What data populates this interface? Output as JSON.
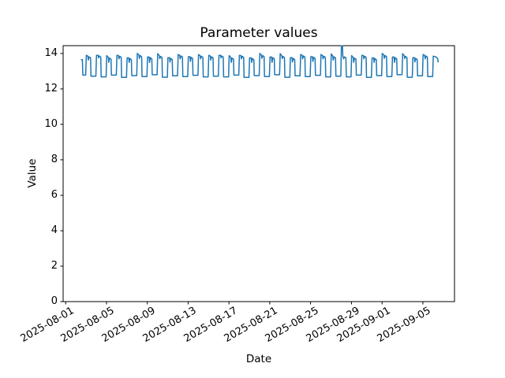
{
  "figure": {
    "background": "#ffffff"
  },
  "chart_data": {
    "type": "line",
    "title": "Parameter values",
    "xlabel": "Date",
    "ylabel": "Value",
    "grid": false,
    "legend": "none",
    "line_color": "#1f77b4",
    "axis_color": "#000000",
    "ylim": [
      0,
      14.44
    ],
    "y_ticks": [
      0,
      2,
      4,
      6,
      8,
      10,
      12,
      14
    ],
    "x_epoch": "2025-08-01",
    "xlim_days": [
      -0.25,
      38.1
    ],
    "x_tick_days": [
      0,
      4,
      8,
      12,
      16,
      20,
      24,
      28,
      31,
      35
    ],
    "x_tick_labels": [
      "2025-08-01",
      "2025-08-05",
      "2025-08-09",
      "2025-08-13",
      "2025-08-17",
      "2025-08-21",
      "2025-08-25",
      "2025-08-29",
      "2025-09-01",
      "2025-09-05"
    ],
    "series": [
      {
        "name": "Parameter values",
        "x_unit": "days since 2025-08-01",
        "points": [
          [
            1.5,
            13.65
          ],
          [
            1.64,
            13.65
          ],
          [
            1.68,
            12.78
          ],
          [
            1.96,
            12.78
          ],
          [
            2.02,
            13.9
          ],
          [
            2.18,
            13.85
          ],
          [
            2.22,
            13.63
          ],
          [
            2.3,
            13.81
          ],
          [
            2.44,
            13.75
          ],
          [
            2.48,
            12.72
          ],
          [
            2.96,
            12.72
          ],
          [
            3.02,
            13.9
          ],
          [
            3.18,
            13.9
          ],
          [
            3.22,
            13.75
          ],
          [
            3.3,
            13.86
          ],
          [
            3.44,
            13.8
          ],
          [
            3.48,
            12.68
          ],
          [
            3.96,
            12.68
          ],
          [
            4.02,
            13.88
          ],
          [
            4.18,
            13.78
          ],
          [
            4.22,
            13.5
          ],
          [
            4.3,
            13.74
          ],
          [
            4.44,
            13.68
          ],
          [
            4.48,
            12.78
          ],
          [
            4.96,
            12.78
          ],
          [
            5.02,
            13.9
          ],
          [
            5.18,
            13.88
          ],
          [
            5.22,
            13.7
          ],
          [
            5.3,
            13.84
          ],
          [
            5.44,
            13.78
          ],
          [
            5.48,
            12.65
          ],
          [
            5.96,
            12.65
          ],
          [
            6.02,
            13.75
          ],
          [
            6.18,
            13.75
          ],
          [
            6.22,
            13.5
          ],
          [
            6.3,
            13.71
          ],
          [
            6.44,
            13.65
          ],
          [
            6.48,
            12.75
          ],
          [
            6.96,
            12.75
          ],
          [
            7.02,
            14.0
          ],
          [
            7.18,
            13.92
          ],
          [
            7.22,
            13.72
          ],
          [
            7.3,
            13.88
          ],
          [
            7.44,
            13.82
          ],
          [
            7.48,
            12.7
          ],
          [
            7.96,
            12.7
          ],
          [
            8.02,
            13.8
          ],
          [
            8.18,
            13.8
          ],
          [
            8.22,
            13.5
          ],
          [
            8.3,
            13.76
          ],
          [
            8.44,
            13.7
          ],
          [
            8.48,
            12.8
          ],
          [
            8.96,
            12.8
          ],
          [
            9.02,
            13.99
          ],
          [
            9.18,
            13.87
          ],
          [
            9.22,
            13.71
          ],
          [
            9.3,
            13.83
          ],
          [
            9.44,
            13.77
          ],
          [
            9.48,
            12.66
          ],
          [
            9.96,
            12.66
          ],
          [
            10.02,
            13.76
          ],
          [
            10.18,
            13.76
          ],
          [
            10.22,
            13.52
          ],
          [
            10.3,
            13.72
          ],
          [
            10.44,
            13.66
          ],
          [
            10.48,
            12.74
          ],
          [
            10.96,
            12.74
          ],
          [
            11.02,
            13.94
          ],
          [
            11.18,
            13.9
          ],
          [
            11.22,
            13.7
          ],
          [
            11.3,
            13.86
          ],
          [
            11.44,
            13.8
          ],
          [
            11.48,
            12.7
          ],
          [
            11.96,
            12.7
          ],
          [
            12.02,
            13.82
          ],
          [
            12.18,
            13.82
          ],
          [
            12.22,
            13.55
          ],
          [
            12.3,
            13.78
          ],
          [
            12.44,
            13.72
          ],
          [
            12.48,
            12.77
          ],
          [
            12.96,
            12.77
          ],
          [
            13.02,
            13.94
          ],
          [
            13.18,
            13.88
          ],
          [
            13.22,
            13.7
          ],
          [
            13.3,
            13.84
          ],
          [
            13.44,
            13.78
          ],
          [
            13.48,
            12.68
          ],
          [
            13.96,
            12.68
          ],
          [
            14.02,
            13.9
          ],
          [
            14.18,
            13.85
          ],
          [
            14.22,
            13.63
          ],
          [
            14.3,
            13.81
          ],
          [
            14.44,
            13.75
          ],
          [
            14.48,
            12.72
          ],
          [
            14.96,
            12.72
          ],
          [
            15.02,
            13.9
          ],
          [
            15.18,
            13.9
          ],
          [
            15.22,
            13.75
          ],
          [
            15.3,
            13.86
          ],
          [
            15.44,
            13.8
          ],
          [
            15.48,
            12.68
          ],
          [
            15.96,
            12.68
          ],
          [
            16.02,
            13.88
          ],
          [
            16.18,
            13.78
          ],
          [
            16.22,
            13.5
          ],
          [
            16.3,
            13.74
          ],
          [
            16.44,
            13.68
          ],
          [
            16.48,
            12.78
          ],
          [
            16.96,
            12.78
          ],
          [
            17.02,
            13.9
          ],
          [
            17.18,
            13.88
          ],
          [
            17.22,
            13.7
          ],
          [
            17.3,
            13.84
          ],
          [
            17.44,
            13.78
          ],
          [
            17.48,
            12.65
          ],
          [
            17.96,
            12.65
          ],
          [
            18.02,
            13.75
          ],
          [
            18.18,
            13.75
          ],
          [
            18.22,
            13.5
          ],
          [
            18.3,
            13.71
          ],
          [
            18.44,
            13.65
          ],
          [
            18.48,
            12.75
          ],
          [
            18.96,
            12.75
          ],
          [
            19.02,
            14.0
          ],
          [
            19.18,
            13.92
          ],
          [
            19.22,
            13.72
          ],
          [
            19.3,
            13.88
          ],
          [
            19.44,
            13.82
          ],
          [
            19.48,
            12.7
          ],
          [
            19.96,
            12.7
          ],
          [
            20.02,
            13.8
          ],
          [
            20.18,
            13.8
          ],
          [
            20.22,
            13.5
          ],
          [
            20.3,
            13.76
          ],
          [
            20.44,
            13.7
          ],
          [
            20.48,
            12.8
          ],
          [
            20.96,
            12.8
          ],
          [
            21.02,
            13.99
          ],
          [
            21.18,
            13.87
          ],
          [
            21.22,
            13.71
          ],
          [
            21.3,
            13.83
          ],
          [
            21.44,
            13.77
          ],
          [
            21.48,
            12.66
          ],
          [
            21.96,
            12.66
          ],
          [
            22.02,
            13.76
          ],
          [
            22.18,
            13.76
          ],
          [
            22.22,
            13.52
          ],
          [
            22.3,
            13.72
          ],
          [
            22.44,
            13.66
          ],
          [
            22.48,
            12.74
          ],
          [
            22.96,
            12.74
          ],
          [
            23.02,
            13.94
          ],
          [
            23.18,
            13.9
          ],
          [
            23.22,
            13.7
          ],
          [
            23.3,
            13.86
          ],
          [
            23.44,
            13.8
          ],
          [
            23.48,
            12.7
          ],
          [
            23.96,
            12.7
          ],
          [
            24.02,
            13.82
          ],
          [
            24.18,
            13.82
          ],
          [
            24.22,
            13.55
          ],
          [
            24.3,
            13.78
          ],
          [
            24.44,
            13.72
          ],
          [
            24.48,
            12.77
          ],
          [
            24.96,
            12.77
          ],
          [
            25.02,
            13.94
          ],
          [
            25.18,
            13.88
          ],
          [
            25.22,
            13.7
          ],
          [
            25.3,
            13.84
          ],
          [
            25.44,
            13.78
          ],
          [
            25.48,
            12.68
          ],
          [
            25.96,
            12.68
          ],
          [
            26.02,
            13.98
          ],
          [
            26.18,
            13.85
          ],
          [
            26.22,
            13.63
          ],
          [
            26.3,
            13.81
          ],
          [
            26.44,
            13.75
          ],
          [
            26.48,
            12.72
          ],
          [
            26.96,
            12.72
          ],
          [
            27.02,
            14.43
          ],
          [
            27.12,
            14.43
          ],
          [
            27.16,
            13.85
          ],
          [
            27.24,
            13.7
          ],
          [
            27.32,
            13.81
          ],
          [
            27.46,
            13.75
          ],
          [
            27.5,
            12.68
          ],
          [
            27.96,
            12.68
          ],
          [
            28.02,
            13.88
          ],
          [
            28.18,
            13.78
          ],
          [
            28.22,
            13.5
          ],
          [
            28.3,
            13.74
          ],
          [
            28.44,
            13.68
          ],
          [
            28.48,
            12.78
          ],
          [
            28.96,
            12.78
          ],
          [
            29.02,
            13.9
          ],
          [
            29.18,
            13.88
          ],
          [
            29.22,
            13.7
          ],
          [
            29.3,
            13.84
          ],
          [
            29.44,
            13.78
          ],
          [
            29.48,
            12.65
          ],
          [
            29.96,
            12.65
          ],
          [
            30.02,
            13.75
          ],
          [
            30.18,
            13.75
          ],
          [
            30.22,
            13.5
          ],
          [
            30.3,
            13.71
          ],
          [
            30.44,
            13.65
          ],
          [
            30.48,
            12.75
          ],
          [
            30.96,
            12.75
          ],
          [
            31.02,
            14.0
          ],
          [
            31.18,
            13.92
          ],
          [
            31.22,
            13.72
          ],
          [
            31.3,
            13.88
          ],
          [
            31.44,
            13.82
          ],
          [
            31.48,
            12.7
          ],
          [
            31.96,
            12.7
          ],
          [
            32.02,
            13.8
          ],
          [
            32.18,
            13.8
          ],
          [
            32.22,
            13.5
          ],
          [
            32.3,
            13.76
          ],
          [
            32.44,
            13.7
          ],
          [
            32.48,
            12.8
          ],
          [
            32.96,
            12.8
          ],
          [
            33.02,
            13.99
          ],
          [
            33.18,
            13.87
          ],
          [
            33.22,
            13.71
          ],
          [
            33.3,
            13.83
          ],
          [
            33.44,
            13.77
          ],
          [
            33.48,
            12.66
          ],
          [
            33.96,
            12.66
          ],
          [
            34.02,
            13.76
          ],
          [
            34.18,
            13.76
          ],
          [
            34.22,
            13.52
          ],
          [
            34.3,
            13.72
          ],
          [
            34.44,
            13.66
          ],
          [
            34.48,
            12.74
          ],
          [
            34.96,
            12.74
          ],
          [
            35.02,
            13.94
          ],
          [
            35.18,
            13.9
          ],
          [
            35.22,
            13.7
          ],
          [
            35.3,
            13.86
          ],
          [
            35.44,
            13.8
          ],
          [
            35.48,
            12.7
          ],
          [
            35.96,
            12.7
          ],
          [
            36.02,
            13.85
          ],
          [
            36.3,
            13.8
          ],
          [
            36.45,
            13.7
          ],
          [
            36.5,
            13.5
          ]
        ]
      }
    ]
  }
}
